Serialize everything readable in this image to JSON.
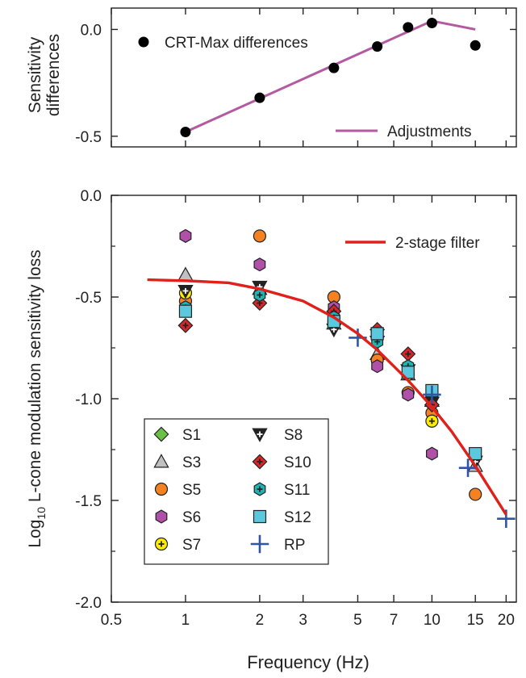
{
  "figure": {
    "colors": {
      "axis": "#222222",
      "crt_points": "#000000",
      "adjust_line": "#b45aa0",
      "filter_line": "#e0201b",
      "rp_cross": "#2f55a4"
    }
  },
  "chart_data": [
    {
      "type": "scatter",
      "panel": "top",
      "ylabel_lines": [
        "Sensitivity",
        "differences"
      ],
      "xscale": "log",
      "xlim": [
        0.5,
        22
      ],
      "ylim": [
        -0.55,
        0.1
      ],
      "yticks": [
        0.0,
        -0.5
      ],
      "ytick_labels": [
        "0.0",
        "-0.5"
      ],
      "series": [
        {
          "name": "CRT-Max differences",
          "kind": "points",
          "color": "#000000",
          "x": [
            1,
            2,
            4,
            6,
            8,
            10,
            15
          ],
          "y": [
            -0.48,
            -0.32,
            -0.18,
            -0.08,
            0.01,
            0.03,
            -0.075
          ]
        },
        {
          "name": "Adjustments",
          "kind": "line",
          "color": "#b45aa0",
          "x": [
            1,
            10,
            15
          ],
          "y": [
            -0.48,
            0.04,
            0.0
          ]
        }
      ],
      "legend_position": "top-left and bottom-right"
    },
    {
      "type": "scatter",
      "panel": "bottom",
      "xlabel": "Frequency (Hz)",
      "ylabel_prefix": "Log",
      "ylabel_sub": "10",
      "ylabel_rest": " L-cone modulation sensitivity loss",
      "xscale": "log",
      "xlim": [
        0.5,
        22
      ],
      "ylim": [
        -2.0,
        0.0
      ],
      "xticks": [
        0.5,
        1,
        2,
        3,
        5,
        7,
        10,
        15,
        20
      ],
      "xtick_labels": [
        "0.5",
        "1",
        "2",
        "3",
        "5",
        "7",
        "10",
        "15",
        "20"
      ],
      "yticks": [
        0.0,
        -0.5,
        -1.0,
        -1.5,
        -2.0
      ],
      "ytick_labels": [
        "0.0",
        "-0.5",
        "-1.0",
        "-1.5",
        "-2.0"
      ],
      "filter": {
        "name": "2-stage filter",
        "color": "#e0201b",
        "x": [
          0.7,
          1,
          1.5,
          2,
          3,
          4,
          5,
          6,
          7,
          8,
          10,
          12,
          15,
          20
        ],
        "y": [
          -0.415,
          -0.42,
          -0.43,
          -0.46,
          -0.52,
          -0.6,
          -0.68,
          -0.76,
          -0.84,
          -0.91,
          -1.04,
          -1.16,
          -1.33,
          -1.57
        ]
      },
      "series": [
        {
          "name": "S1",
          "marker": "diamond",
          "fill": "#6abf45",
          "x": [],
          "y": []
        },
        {
          "name": "S3",
          "marker": "triangle-up",
          "fill": "#c0c0c0",
          "x": [
            1,
            2,
            4,
            6,
            8,
            10,
            15
          ],
          "y": [
            -0.39,
            -0.46,
            -0.63,
            -0.78,
            -0.88,
            -1.01,
            -1.33
          ]
        },
        {
          "name": "S5",
          "marker": "circle",
          "fill": "#f58220",
          "x": [
            1,
            2,
            4,
            6,
            8,
            10,
            15
          ],
          "y": [
            -0.52,
            -0.2,
            -0.5,
            -0.81,
            -0.97,
            -1.07,
            -1.47
          ]
        },
        {
          "name": "S6",
          "marker": "hexagon",
          "fill": "#b050a8",
          "x": [
            1,
            2,
            4,
            6,
            8,
            10
          ],
          "y": [
            -0.2,
            -0.34,
            -0.55,
            -0.84,
            -0.98,
            -1.27
          ]
        },
        {
          "name": "S7",
          "marker": "circle-plus",
          "fill": "#ffeb00",
          "x": [
            1,
            4,
            8,
            10
          ],
          "y": [
            -0.48,
            -0.62,
            -0.88,
            -1.11
          ]
        },
        {
          "name": "S8",
          "marker": "triangle-down-plus",
          "fill": "#ffffff",
          "x": [
            1,
            2,
            4,
            6,
            8,
            10,
            15
          ],
          "y": [
            -0.47,
            -0.45,
            -0.66,
            -0.72,
            -0.86,
            -1.02,
            -1.31
          ]
        },
        {
          "name": "S10",
          "marker": "diamond-plus",
          "fill": "#d7262a",
          "x": [
            1,
            2,
            4,
            6,
            8,
            10
          ],
          "y": [
            -0.64,
            -0.53,
            -0.57,
            -0.66,
            -0.78,
            -1.03
          ]
        },
        {
          "name": "S11",
          "marker": "hexagon-plus",
          "fill": "#1fb3b3",
          "x": [
            1,
            2,
            4,
            6,
            8
          ],
          "y": [
            -0.55,
            -0.49,
            -0.6,
            -0.72,
            -0.84
          ]
        },
        {
          "name": "S12",
          "marker": "square",
          "fill": "#5bc8de",
          "x": [
            1,
            4,
            6,
            8,
            10,
            15
          ],
          "y": [
            -0.57,
            -0.62,
            -0.68,
            -0.87,
            -0.96,
            -1.27
          ]
        },
        {
          "name": "RP",
          "marker": "cross",
          "fill": "#2f55a4",
          "x": [
            5,
            10,
            14,
            20
          ],
          "y": [
            -0.7,
            -0.98,
            -1.34,
            -1.59
          ]
        }
      ],
      "legend_columns": [
        [
          "S1",
          "S3",
          "S5",
          "S6",
          "S7"
        ],
        [
          "S8",
          "S10",
          "S11",
          "S12",
          "RP"
        ]
      ],
      "legend_position": "bottom-left"
    }
  ]
}
